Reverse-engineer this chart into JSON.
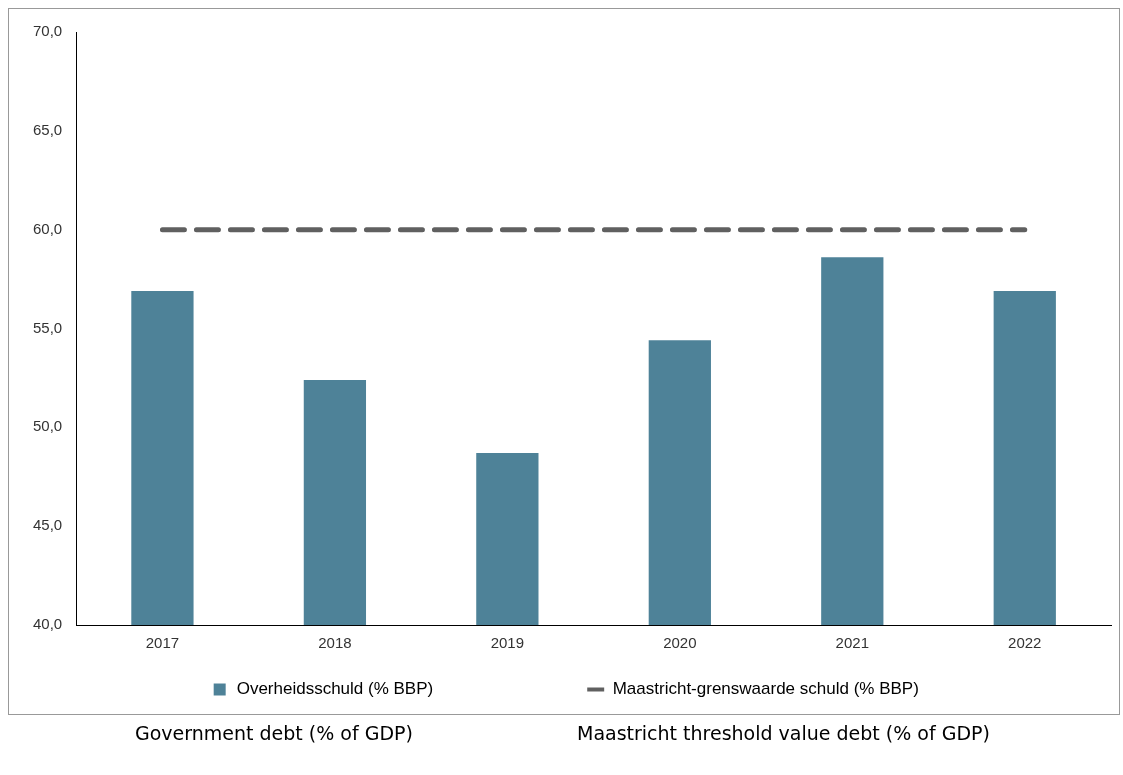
{
  "chart_data": {
    "type": "bar",
    "categories": [
      "2017",
      "2018",
      "2019",
      "2020",
      "2021",
      "2022"
    ],
    "series": [
      {
        "name": "Overheidsschuld (% BBP)",
        "color": "#4e8298",
        "values": [
          56.9,
          52.4,
          48.7,
          54.4,
          58.6,
          56.9
        ]
      },
      {
        "name": "Maastricht-grenswaarde schuld (% BBP)",
        "type": "line",
        "color": "#606060",
        "line_style": "dashed",
        "marker": "none",
        "values": [
          60,
          60,
          60,
          60,
          60,
          60
        ]
      }
    ],
    "ylim": [
      40,
      70
    ],
    "yticks": [
      {
        "value": 40,
        "label": "40,0"
      },
      {
        "value": 45,
        "label": "45,0"
      },
      {
        "value": 50,
        "label": "50,0"
      },
      {
        "value": 55,
        "label": "55,0"
      },
      {
        "value": 60,
        "label": "60,0"
      },
      {
        "value": 65,
        "label": "65,0"
      },
      {
        "value": 70,
        "label": "70,0"
      }
    ],
    "grid": false,
    "legend": "bottom",
    "annotations": [
      "Government debt (% of GDP)",
      "Maastricht threshold value debt (% of GDP)"
    ]
  }
}
